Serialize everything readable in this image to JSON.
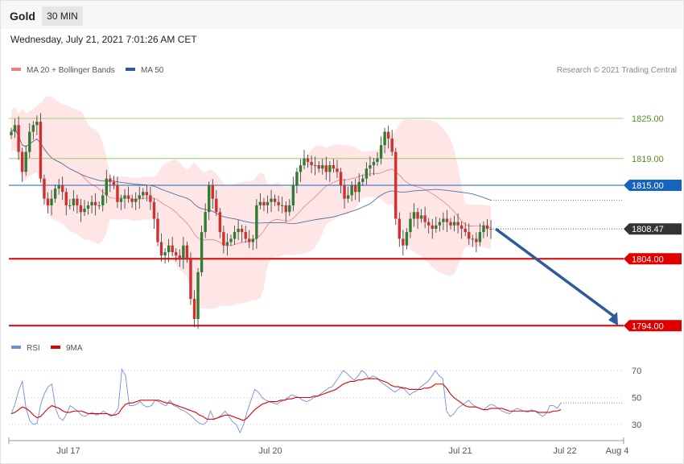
{
  "header": {
    "title": "Gold",
    "timeframe": "30 MIN"
  },
  "date_line": "Wednesday, July 21, 2021 7:01:26 AM CET",
  "copyright": "Research © 2021 Trading Central",
  "colors": {
    "bb": "#ffd6d6",
    "ma20": "#f08080",
    "ma50": "#5470a8",
    "up": "#2e7d32",
    "down": "#d32f2f",
    "resist": "#8bc34a",
    "pivot": "#1565c0",
    "support": "#e00000",
    "arrow": "#2f5b9e",
    "rsi": "#6f8fe0",
    "rsi_ma": "#e00000"
  },
  "chart_data": [
    {
      "type": "candlestick",
      "legend": [
        {
          "name": "MA 20 + Bollinger Bands",
          "color": "#f08080"
        },
        {
          "name": "MA 50",
          "color": "#2f5b9e"
        }
      ],
      "legend_position": "top-left",
      "ylim": [
        1790,
        1832
      ],
      "levels": [
        {
          "value": 1825.0,
          "label": "1825.00",
          "kind": "resistance"
        },
        {
          "value": 1819.0,
          "label": "1819.00",
          "kind": "resistance"
        },
        {
          "value": 1815.0,
          "label": "1815.00",
          "kind": "pivot"
        },
        {
          "value": 1808.47,
          "label": "1808.47",
          "kind": "last"
        },
        {
          "value": 1804.0,
          "label": "1804.00",
          "kind": "support"
        },
        {
          "value": 1794.0,
          "label": "1794.00",
          "kind": "support"
        }
      ],
      "closes": [
        1823.0,
        1824.0,
        1820.0,
        1817.0,
        1820.0,
        1823.0,
        1824.0,
        1824.5,
        1816.0,
        1813.0,
        1812.0,
        1813.0,
        1814.5,
        1815.0,
        1814.0,
        1812.0,
        1812.0,
        1813.0,
        1812.0,
        1811.0,
        1811.5,
        1812.0,
        1812.5,
        1812.0,
        1812.0,
        1813.5,
        1816.0,
        1815.5,
        1815.0,
        1812.5,
        1813.0,
        1813.5,
        1813.0,
        1812.5,
        1813.0,
        1813.5,
        1814.0,
        1813.5,
        1812.5,
        1810.0,
        1806.5,
        1804.5,
        1805.0,
        1806.0,
        1805.0,
        1804.5,
        1804.0,
        1806.0,
        1804.0,
        1798.0,
        1795.0,
        1802.0,
        1808.0,
        1811.0,
        1815.0,
        1813.0,
        1811.0,
        1808.0,
        1806.0,
        1806.5,
        1807.0,
        1808.0,
        1808.5,
        1808.0,
        1807.0,
        1806.5,
        1807.0,
        1812.0,
        1812.5,
        1812.0,
        1812.5,
        1813.0,
        1812.5,
        1812.0,
        1812.0,
        1811.0,
        1812.0,
        1815.0,
        1817.0,
        1818.0,
        1819.0,
        1818.5,
        1818.0,
        1818.0,
        1817.5,
        1818.0,
        1817.0,
        1818.0,
        1817.5,
        1817.0,
        1815.0,
        1813.0,
        1813.5,
        1815.0,
        1814.0,
        1815.5,
        1816.0,
        1817.5,
        1818.0,
        1818.5,
        1819.0,
        1821.0,
        1823.0,
        1822.0,
        1820.0,
        1810.0,
        1807.0,
        1806.0,
        1808.0,
        1810.0,
        1811.0,
        1810.0,
        1810.5,
        1809.5,
        1809.0,
        1808.5,
        1809.0,
        1809.5,
        1810.0,
        1809.5,
        1809.0,
        1809.5,
        1809.0,
        1808.5,
        1808.0,
        1807.0,
        1807.0,
        1806.5,
        1808.0,
        1809.0,
        1808.5,
        1808.47
      ],
      "x_ticks": [
        "Jul 17",
        "Jul 20",
        "Jul 21",
        "Jul 22",
        "Aug 4"
      ]
    },
    {
      "type": "line",
      "legend": [
        {
          "name": "RSI",
          "color": "#6f8fe0"
        },
        {
          "name": "9MA",
          "color": "#e00000"
        }
      ],
      "y_ticks": [
        "70",
        "50",
        "30"
      ],
      "ylim": [
        18,
        82
      ],
      "series": [
        {
          "name": "RSI",
          "values": [
            38,
            45,
            55,
            62,
            42,
            33,
            30,
            31,
            45,
            53,
            58,
            60,
            42,
            35,
            33,
            38,
            44,
            42,
            40,
            37,
            36,
            38,
            39,
            37,
            38,
            40,
            38,
            36,
            38,
            42,
            71,
            66,
            44,
            44,
            45,
            47,
            44,
            43,
            44,
            48,
            47,
            45,
            44,
            48,
            44,
            43,
            41,
            40,
            38,
            36,
            33,
            31,
            30,
            32,
            40,
            34,
            35,
            37,
            40,
            36,
            32,
            30,
            24,
            30,
            40,
            48,
            56,
            54,
            50,
            48,
            47,
            46,
            45,
            47,
            48,
            50,
            52,
            51,
            50,
            48,
            47,
            48,
            50,
            51,
            53,
            55,
            57,
            58,
            62,
            66,
            70,
            68,
            65,
            63,
            66,
            70,
            68,
            64,
            66,
            65,
            62,
            60,
            58,
            56,
            54,
            56,
            58,
            55,
            52,
            54,
            55,
            58,
            60,
            62,
            66,
            70,
            66,
            64,
            40,
            36,
            38,
            42,
            44,
            46,
            48,
            45,
            43,
            42,
            41,
            43,
            45,
            44,
            42,
            40,
            39,
            38,
            40,
            42,
            41,
            40,
            39,
            41,
            40,
            38,
            36,
            38,
            44,
            44,
            42,
            46
          ]
        },
        {
          "name": "9MA",
          "values": [
            38,
            39,
            41,
            43,
            42,
            40,
            37,
            35,
            36,
            39,
            42,
            44,
            43,
            42,
            40,
            39,
            39,
            40,
            40,
            40,
            39,
            38,
            38,
            38,
            38,
            38,
            38,
            37,
            37,
            38,
            42,
            45,
            46,
            46,
            47,
            48,
            48,
            48,
            48,
            48,
            48,
            47,
            46,
            46,
            45,
            44,
            43,
            42,
            41,
            40,
            39,
            37,
            36,
            34,
            34,
            34,
            35,
            36,
            37,
            37,
            36,
            35,
            34,
            33,
            35,
            38,
            41,
            43,
            45,
            46,
            47,
            47,
            47,
            48,
            48,
            49,
            49,
            50,
            50,
            50,
            50,
            50,
            51,
            51,
            52,
            53,
            54,
            55,
            56,
            58,
            60,
            61,
            62,
            62,
            63,
            63,
            64,
            64,
            64,
            64,
            63,
            62,
            61,
            59,
            58,
            58,
            57,
            57,
            56,
            56,
            56,
            56,
            57,
            57,
            58,
            60,
            60,
            60,
            57,
            53,
            50,
            48,
            46,
            44,
            43,
            43,
            43,
            42,
            41,
            41,
            42,
            42,
            42,
            42,
            41,
            40,
            40,
            40,
            40,
            40,
            40,
            40,
            40,
            39,
            39,
            39,
            39,
            40,
            40,
            41
          ]
        }
      ]
    }
  ]
}
